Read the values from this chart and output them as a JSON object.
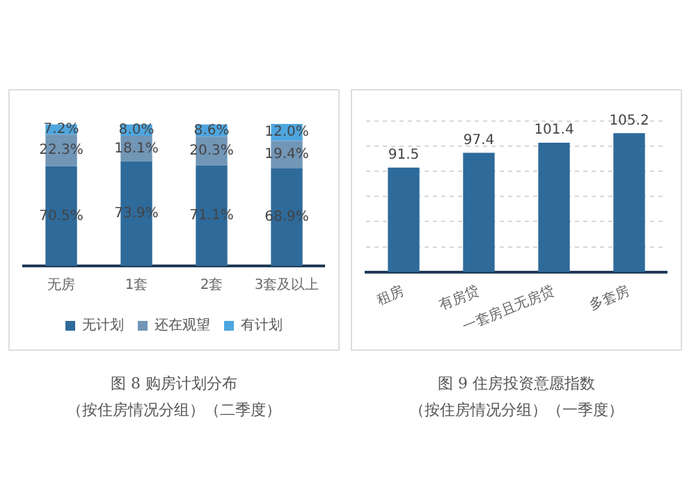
{
  "chart_data": [
    {
      "type": "bar",
      "title": "图 8 购房计划分布",
      "subtitle": "（按住房情况分组）（二季度）",
      "categories": [
        "无房",
        "1套",
        "2套",
        "3套及以上"
      ],
      "stacked": true,
      "legend": "bottom",
      "series": [
        {
          "name": "无计划",
          "color": "#2e6a9a",
          "values": [
            70.5,
            73.9,
            71.1,
            68.9
          ],
          "value_labels": [
            "70.5%",
            "73.9%",
            "71.1%",
            "68.9%"
          ]
        },
        {
          "name": "还在观望",
          "color": "#7196b6",
          "values": [
            22.3,
            18.1,
            20.3,
            19.4
          ],
          "value_labels": [
            "22.3%",
            "18.1%",
            "20.3%",
            "19.4%"
          ]
        },
        {
          "name": "有计划",
          "color": "#4ea6df",
          "values": [
            7.2,
            8.0,
            8.6,
            12.0
          ],
          "value_labels": [
            "7.2%",
            "8.0%",
            "8.6%",
            "12.0%"
          ]
        }
      ]
    },
    {
      "type": "bar",
      "title": "图 9 住房投资意愿指数",
      "subtitle": "（按住房情况分组）（一季度）",
      "categories": [
        "租房",
        "有房贷",
        "一套房且无房贷",
        "多套房"
      ],
      "values": [
        91.5,
        97.4,
        101.4,
        105.2
      ],
      "color": "#2e6a9a",
      "data_labels": true,
      "grid": "y",
      "tick_labels": "x",
      "ylim": [
        50,
        110
      ],
      "yticks": [
        {
          "value": 60,
          "label": null
        },
        {
          "value": 70,
          "label": null
        },
        {
          "value": 80,
          "label": null
        },
        {
          "value": 90,
          "label": null
        },
        {
          "value": 100,
          "label": null
        },
        {
          "value": 110,
          "label": null
        }
      ]
    }
  ]
}
